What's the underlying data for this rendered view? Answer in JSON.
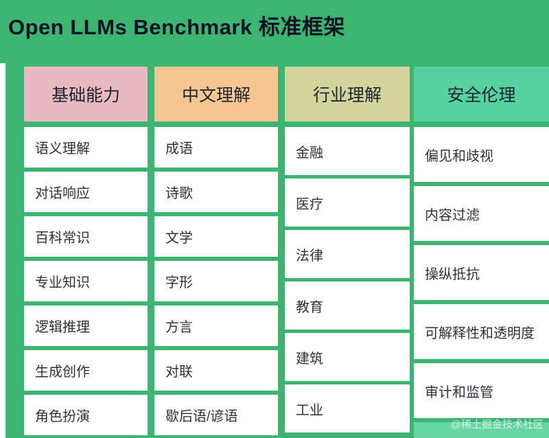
{
  "title": "Open LLMs Benchmark 标准框架",
  "watermark": "@稀土掘金技术社区",
  "colors": {
    "background": "#3cb570",
    "title_text": "#0d1226",
    "cell_background": "#ffffff",
    "cell_text": "#30303a"
  },
  "columns": [
    {
      "header": "基础能力",
      "header_bg": "#e9b9c1",
      "items": [
        "语义理解",
        "对话响应",
        "百科常识",
        "专业知识",
        "逻辑推理",
        "生成创作",
        "角色扮演"
      ]
    },
    {
      "header": "中文理解",
      "header_bg": "#f7c793",
      "items": [
        "成语",
        "诗歌",
        "文学",
        "字形",
        "方言",
        "对联",
        "歇后语/谚语"
      ]
    },
    {
      "header": "行业理解",
      "header_bg": "#d3d49c",
      "items": [
        "金融",
        "医疗",
        "法律",
        "教育",
        "建筑",
        "工业"
      ]
    },
    {
      "header": "安全伦理",
      "header_bg": "#55d2a0",
      "items": [
        "偏见和歧视",
        "内容过滤",
        "操纵抵抗",
        "可解释性和透明度",
        "审计和监管"
      ]
    }
  ]
}
